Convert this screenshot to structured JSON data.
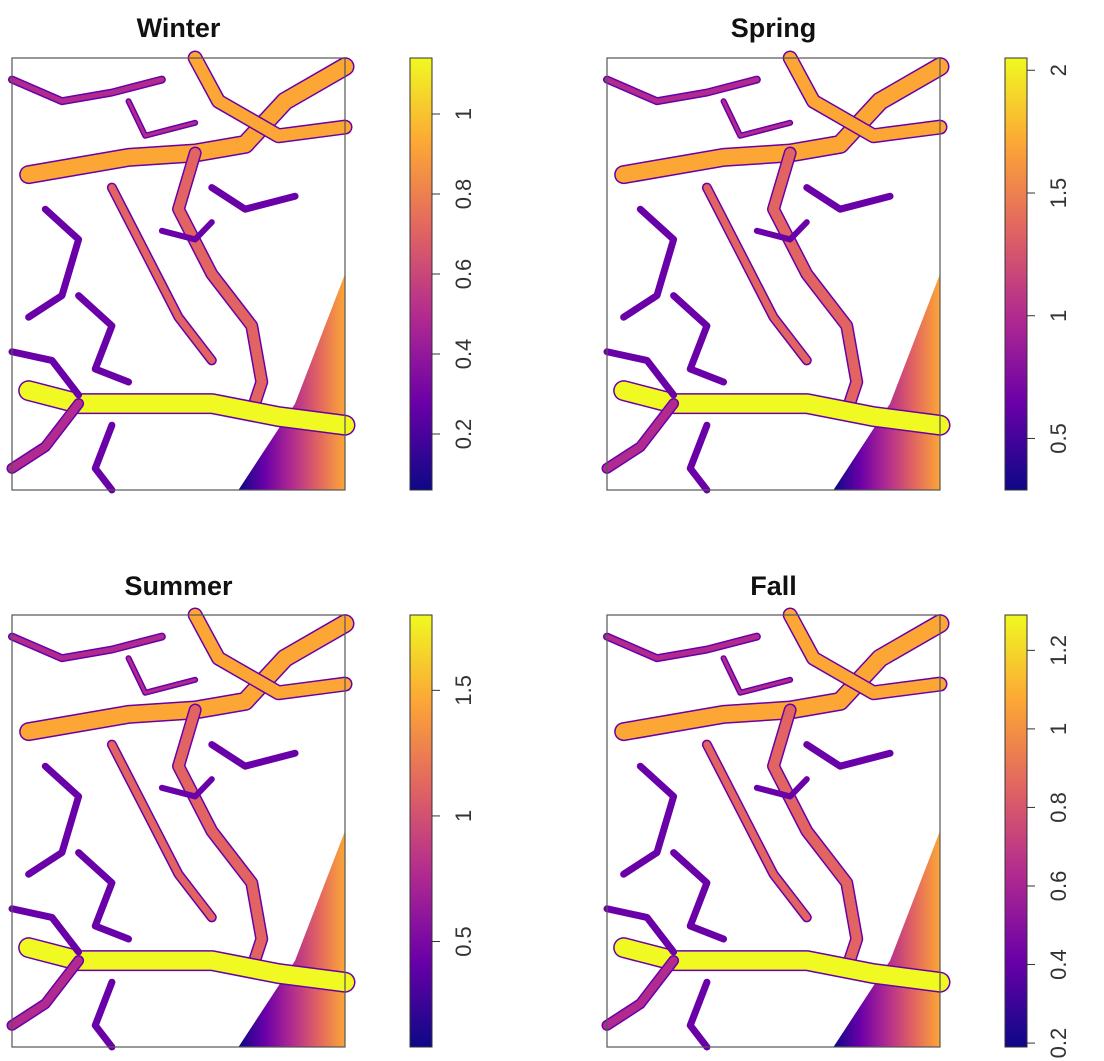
{
  "chart_data": [
    {
      "type": "raster",
      "title": "Winter",
      "zlim": [
        0.06,
        1.14
      ],
      "zticks": [
        0.2,
        0.4,
        0.6,
        0.8,
        1
      ],
      "colorscale": [
        "#0d0887",
        "#6a00a8",
        "#b12a90",
        "#e16462",
        "#fca636",
        "#f0f921"
      ]
    },
    {
      "type": "raster",
      "title": "Spring",
      "zlim": [
        0.29,
        2.05
      ],
      "zticks": [
        0.5,
        1,
        1.5,
        2
      ],
      "colorscale": [
        "#0d0887",
        "#6a00a8",
        "#b12a90",
        "#e16462",
        "#fca636",
        "#f0f921"
      ]
    },
    {
      "type": "raster",
      "title": "Summer",
      "zlim": [
        0.08,
        1.8
      ],
      "zticks": [
        0.5,
        1,
        1.5
      ],
      "colorscale": [
        "#0d0887",
        "#6a00a8",
        "#b12a90",
        "#e16462",
        "#fca636",
        "#f0f921"
      ]
    },
    {
      "type": "raster",
      "title": "Fall",
      "zlim": [
        0.19,
        1.29
      ],
      "zticks": [
        0.2,
        0.4,
        0.6,
        0.8,
        1,
        1.2
      ],
      "colorscale": [
        "#0d0887",
        "#6a00a8",
        "#b12a90",
        "#e16462",
        "#fca636",
        "#f0f921"
      ]
    }
  ]
}
